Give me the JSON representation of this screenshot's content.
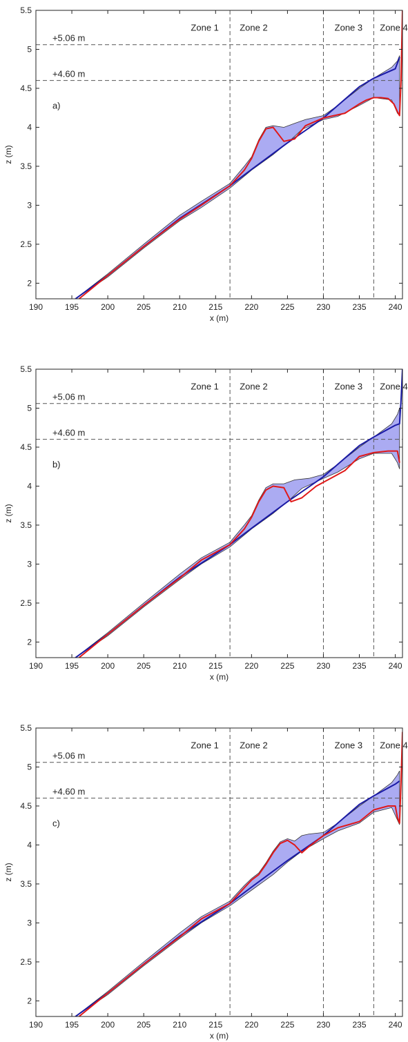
{
  "colors": {
    "initial_profile": "#1a1aa6",
    "final_profile": "#e01818",
    "envelope_fill": "#9c9cf0",
    "envelope_edge": "#333333",
    "reference_lines": "#555555"
  },
  "chart_data": [
    {
      "type": "area",
      "panel_label": "a)",
      "xlabel": "x (m)",
      "ylabel": "z (m)",
      "xlim": [
        190,
        241
      ],
      "ylim": [
        1.8,
        5.5
      ],
      "xticks": [
        190,
        195,
        200,
        205,
        210,
        215,
        220,
        225,
        230,
        235,
        240
      ],
      "yticks": [
        2,
        2.5,
        3,
        3.5,
        4,
        4.5,
        5,
        5.5
      ],
      "xtick_labels": [
        "190",
        "195",
        "200",
        "205",
        "210",
        "215",
        "220",
        "225",
        "230",
        "235",
        "240"
      ],
      "ytick_labels": [
        "2",
        "2.5",
        "3",
        "3.5",
        "4",
        "4.5",
        "5",
        "5.5"
      ],
      "grid": false,
      "reference_lines": [
        {
          "y": 5.06,
          "label": "+5.06 m"
        },
        {
          "y": 4.6,
          "label": "+4.60 m"
        }
      ],
      "zone_boundaries": [
        217,
        230,
        237
      ],
      "zones": [
        {
          "label": "Zone 1",
          "x": 213.5
        },
        {
          "label": "Zone 2",
          "x": 220.3
        },
        {
          "label": "Zone 3",
          "x": 233.5
        },
        {
          "label": "Zone 4",
          "x": 239.8
        }
      ],
      "series": [
        {
          "role": "initial",
          "x": [
            195.5,
            200,
            205,
            210,
            217,
            220,
            225,
            230,
            235,
            237,
            240,
            240.6
          ],
          "y": [
            1.8,
            2.1,
            2.47,
            2.83,
            3.25,
            3.46,
            3.8,
            4.12,
            4.52,
            4.63,
            4.75,
            4.9
          ]
        },
        {
          "role": "final",
          "x": [
            196,
            200,
            205,
            210,
            213,
            217,
            219,
            220,
            221,
            222,
            223,
            224.5,
            226,
            227.5,
            230,
            233,
            235,
            236,
            237,
            238,
            239,
            239.8,
            240.3,
            240.6,
            240.8,
            241
          ],
          "y": [
            1.8,
            2.1,
            2.47,
            2.82,
            3.0,
            3.25,
            3.45,
            3.6,
            3.82,
            3.98,
            4.0,
            3.82,
            3.85,
            4.02,
            4.12,
            4.18,
            4.3,
            4.35,
            4.38,
            4.38,
            4.37,
            4.3,
            4.2,
            4.15,
            4.6,
            5.5
          ]
        },
        {
          "role": "envelope_upper",
          "x": [
            195.5,
            200,
            205,
            210,
            213,
            217,
            219,
            220,
            221,
            222,
            223,
            224.5,
            226,
            227.5,
            230,
            232,
            235,
            237,
            239.5,
            240.3,
            240.6
          ],
          "y": [
            1.8,
            2.12,
            2.5,
            2.87,
            3.05,
            3.28,
            3.5,
            3.62,
            3.84,
            4.0,
            4.02,
            4.0,
            4.05,
            4.1,
            4.15,
            4.28,
            4.5,
            4.63,
            4.77,
            4.85,
            4.92
          ]
        },
        {
          "role": "envelope_lower",
          "x": [
            195.5,
            200,
            205,
            210,
            213,
            217,
            220,
            223,
            225,
            227,
            230,
            232,
            235,
            237,
            239.5,
            240.3,
            240.6
          ],
          "y": [
            1.8,
            2.08,
            2.45,
            2.8,
            2.97,
            3.22,
            3.45,
            3.65,
            3.8,
            3.97,
            4.1,
            4.14,
            4.28,
            4.38,
            4.35,
            4.18,
            4.15
          ]
        }
      ]
    },
    {
      "type": "area",
      "panel_label": "b)",
      "xlabel": "x (m)",
      "ylabel": "z (m)",
      "xlim": [
        190,
        241
      ],
      "ylim": [
        1.8,
        5.5
      ],
      "xticks": [
        190,
        195,
        200,
        205,
        210,
        215,
        220,
        225,
        230,
        235,
        240
      ],
      "yticks": [
        2,
        2.5,
        3,
        3.5,
        4,
        4.5,
        5,
        5.5
      ],
      "xtick_labels": [
        "190",
        "195",
        "200",
        "205",
        "210",
        "215",
        "220",
        "225",
        "230",
        "235",
        "240"
      ],
      "ytick_labels": [
        "2",
        "2.5",
        "3",
        "3.5",
        "4",
        "4.5",
        "5",
        "5.5"
      ],
      "grid": false,
      "reference_lines": [
        {
          "y": 5.06,
          "label": "+5.06 m"
        },
        {
          "y": 4.6,
          "label": "+4.60 m"
        }
      ],
      "zone_boundaries": [
        217,
        230,
        237
      ],
      "zones": [
        {
          "label": "Zone 1",
          "x": 213.5
        },
        {
          "label": "Zone 2",
          "x": 220.3
        },
        {
          "label": "Zone 3",
          "x": 233.5
        },
        {
          "label": "Zone 4",
          "x": 239.8
        }
      ],
      "series": [
        {
          "role": "initial",
          "x": [
            195.5,
            200,
            205,
            210,
            217,
            220,
            225,
            230,
            235,
            237,
            240,
            240.6,
            240.8,
            241
          ],
          "y": [
            1.8,
            2.1,
            2.47,
            2.83,
            3.25,
            3.46,
            3.8,
            4.12,
            4.52,
            4.63,
            4.78,
            4.8,
            5.1,
            5.5
          ]
        },
        {
          "role": "final",
          "x": [
            196,
            200,
            205,
            210,
            213,
            217,
            219,
            220,
            221,
            222,
            223,
            224.5,
            225.5,
            227,
            229,
            231,
            233,
            235,
            237,
            239,
            240.3,
            240.6
          ],
          "y": [
            1.8,
            2.1,
            2.47,
            2.82,
            3.05,
            3.25,
            3.45,
            3.6,
            3.8,
            3.95,
            4.0,
            3.98,
            3.8,
            3.85,
            4.0,
            4.1,
            4.2,
            4.38,
            4.43,
            4.45,
            4.45,
            4.3
          ]
        },
        {
          "role": "envelope_upper",
          "x": [
            195.5,
            200,
            205,
            210,
            213,
            217,
            219,
            220,
            221,
            222,
            223,
            224.5,
            226,
            228,
            230,
            232,
            235,
            237,
            239.5,
            240.3,
            240.6
          ],
          "y": [
            1.8,
            2.12,
            2.5,
            2.87,
            3.08,
            3.28,
            3.5,
            3.62,
            3.82,
            3.98,
            4.03,
            4.03,
            4.08,
            4.1,
            4.15,
            4.28,
            4.5,
            4.63,
            4.8,
            4.92,
            5.0
          ]
        },
        {
          "role": "envelope_lower",
          "x": [
            195.5,
            200,
            205,
            210,
            213,
            217,
            220,
            223,
            225,
            227,
            230,
            232,
            235,
            237,
            239.5,
            240.3,
            240.6
          ],
          "y": [
            1.8,
            2.08,
            2.45,
            2.8,
            3.0,
            3.22,
            3.45,
            3.65,
            3.8,
            3.97,
            4.1,
            4.18,
            4.35,
            4.42,
            4.42,
            4.3,
            4.22
          ]
        }
      ]
    },
    {
      "type": "area",
      "panel_label": "c)",
      "xlabel": "x (m)",
      "ylabel": "z (m)",
      "xlim": [
        190,
        241
      ],
      "ylim": [
        1.8,
        5.5
      ],
      "xticks": [
        190,
        195,
        200,
        205,
        210,
        215,
        220,
        225,
        230,
        235,
        240
      ],
      "yticks": [
        2,
        2.5,
        3,
        3.5,
        4,
        4.5,
        5,
        5.5
      ],
      "xtick_labels": [
        "190",
        "195",
        "200",
        "205",
        "210",
        "215",
        "220",
        "225",
        "230",
        "235",
        "240"
      ],
      "ytick_labels": [
        "2",
        "2.5",
        "3",
        "3.5",
        "4",
        "4.5",
        "5",
        "5.5"
      ],
      "grid": false,
      "reference_lines": [
        {
          "y": 5.06,
          "label": "+5.06 m"
        },
        {
          "y": 4.6,
          "label": "+4.60 m"
        }
      ],
      "zone_boundaries": [
        217,
        230,
        237
      ],
      "zones": [
        {
          "label": "Zone 1",
          "x": 213.5
        },
        {
          "label": "Zone 2",
          "x": 220.3
        },
        {
          "label": "Zone 3",
          "x": 233.5
        },
        {
          "label": "Zone 4",
          "x": 239.8
        }
      ],
      "series": [
        {
          "role": "initial",
          "x": [
            195.5,
            200,
            205,
            210,
            217,
            220,
            225,
            230,
            235,
            237,
            240,
            240.6
          ],
          "y": [
            1.8,
            2.1,
            2.47,
            2.83,
            3.25,
            3.46,
            3.8,
            4.12,
            4.52,
            4.63,
            4.78,
            4.82
          ]
        },
        {
          "role": "final",
          "x": [
            196,
            200,
            205,
            210,
            213,
            217,
            219,
            220,
            221,
            222,
            223,
            224,
            225,
            226,
            227,
            228,
            230,
            232,
            235,
            237,
            239,
            240,
            240.3,
            240.6,
            240.8,
            241
          ],
          "y": [
            1.8,
            2.1,
            2.47,
            2.82,
            3.05,
            3.25,
            3.45,
            3.55,
            3.62,
            3.75,
            3.9,
            4.02,
            4.06,
            4.0,
            3.9,
            3.98,
            4.12,
            4.22,
            4.3,
            4.45,
            4.5,
            4.5,
            4.35,
            4.28,
            4.8,
            5.45
          ]
        },
        {
          "role": "envelope_upper",
          "x": [
            195.5,
            200,
            205,
            210,
            213,
            217,
            219,
            220,
            221,
            222,
            223,
            224,
            225,
            226,
            227,
            228,
            230,
            232,
            235,
            237,
            239.5,
            240.3,
            240.6
          ],
          "y": [
            1.8,
            2.12,
            2.5,
            2.87,
            3.08,
            3.28,
            3.48,
            3.57,
            3.64,
            3.77,
            3.92,
            4.04,
            4.08,
            4.05,
            4.12,
            4.14,
            4.16,
            4.28,
            4.5,
            4.63,
            4.8,
            4.9,
            4.95
          ]
        },
        {
          "role": "envelope_lower",
          "x": [
            195.5,
            200,
            205,
            210,
            213,
            217,
            220,
            223,
            225,
            227,
            230,
            232,
            235,
            237,
            239.5,
            240.3,
            240.6
          ],
          "y": [
            1.8,
            2.08,
            2.45,
            2.8,
            3.0,
            3.22,
            3.42,
            3.62,
            3.78,
            3.92,
            4.08,
            4.18,
            4.28,
            4.42,
            4.48,
            4.32,
            4.26
          ]
        }
      ]
    }
  ]
}
